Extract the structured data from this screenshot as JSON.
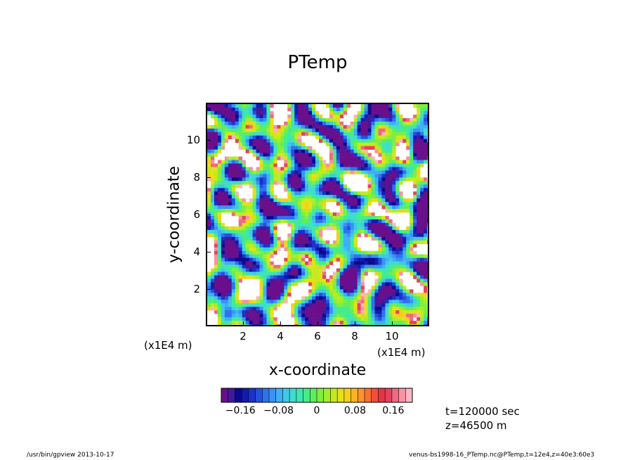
{
  "chart_data": {
    "type": "heatmap",
    "title": "PTemp",
    "xlabel": "x-coordinate",
    "ylabel": "y-coordinate",
    "x_multiplier": "(x1E4 m)",
    "y_multiplier": "(x1E4 m)",
    "xlim": [
      0,
      12
    ],
    "ylim": [
      0,
      12
    ],
    "xticks": [
      "2",
      "4",
      "6",
      "8",
      "10"
    ],
    "yticks": [
      "2",
      "4",
      "6",
      "8",
      "10"
    ],
    "colorbar": {
      "range": [
        -0.2,
        0.2
      ],
      "tick_labels": [
        "−0.16",
        "−0.08",
        "0",
        "0.08",
        "0.16"
      ],
      "colors": [
        "#6a0f8c",
        "#3f1a9e",
        "#0b0a8e",
        "#111bb0",
        "#1a33c8",
        "#2451dd",
        "#2f72ee",
        "#3a92f5",
        "#3fb0f3",
        "#3fc9e6",
        "#3fdcd0",
        "#3fe6b0",
        "#45ec8c",
        "#5cee62",
        "#80ee3f",
        "#a3ee2c",
        "#c5ea1e",
        "#e3e21a",
        "#f5cf1e",
        "#fbb325",
        "#fc932b",
        "#f87133",
        "#f0503a",
        "#e63444",
        "#e6425c",
        "#ee6a82",
        "#f693a4",
        "#f8b7c1"
      ]
    },
    "annotations": {
      "time": "t=120000 sec",
      "level": "z=46500 m"
    }
  },
  "footer": {
    "left": "/usr/bin/gpview   2013-10-17",
    "right": "venus-bs1998-16_PTemp.nc@PTemp,t=12e4,z=40e3:60e3"
  }
}
